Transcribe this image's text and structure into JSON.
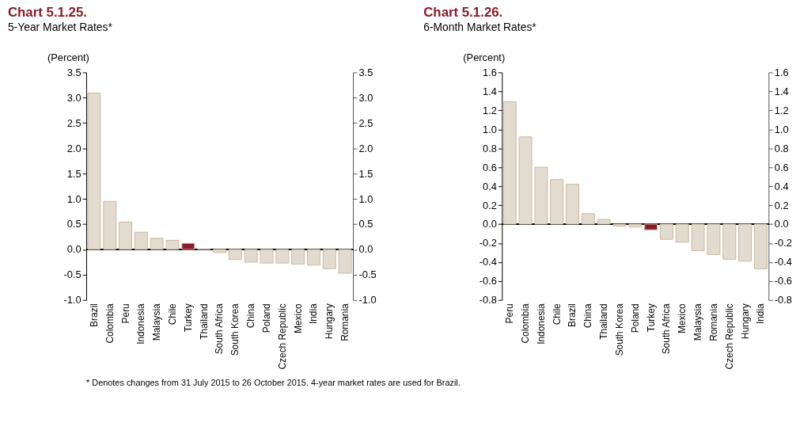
{
  "chart_data": [
    {
      "type": "bar",
      "title": "Chart 5.1.25.",
      "subtitle": "5-Year Market Rates*",
      "ylabel": "(Percent)",
      "categories": [
        "Brazil",
        "Colombia",
        "Peru",
        "Indonesia",
        "Malaysia",
        "Chile",
        "Turkey",
        "Thailand",
        "South Africa",
        "South Korea",
        "China",
        "Poland",
        "Czech Republic",
        "Mexico",
        "India",
        "Hungary",
        "Romania"
      ],
      "values": [
        3.09,
        0.95,
        0.54,
        0.34,
        0.22,
        0.18,
        0.12,
        0.01,
        -0.06,
        -0.2,
        -0.25,
        -0.27,
        -0.27,
        -0.29,
        -0.31,
        -0.38,
        -0.47
      ],
      "colors": [
        "#e4dbd0",
        "#e4dbd0",
        "#e4dbd0",
        "#e4dbd0",
        "#e4dbd0",
        "#e4dbd0",
        "#8b1a2b",
        "#e4dbd0",
        "#e4dbd0",
        "#e4dbd0",
        "#e4dbd0",
        "#e4dbd0",
        "#e4dbd0",
        "#e4dbd0",
        "#e4dbd0",
        "#e4dbd0",
        "#e4dbd0"
      ],
      "ylim": [
        -1.0,
        3.5
      ],
      "yticks": [
        {
          "value": -1,
          "label": "-1.0"
        },
        -0.5,
        {
          "value": 0,
          "label": "0.0"
        },
        0.5,
        {
          "value": 1,
          "label": "1.0"
        },
        1.5,
        {
          "value": 2,
          "label": "2.0"
        },
        2.5,
        {
          "value": 3,
          "label": "3.0"
        },
        3.5
      ],
      "y2lim": [
        -1.0,
        3.5
      ],
      "y2ticks": [
        {
          "value": -1,
          "label": "-1.0"
        },
        -0.5,
        {
          "value": 0,
          "label": "0.0"
        },
        0.5,
        {
          "value": 1,
          "label": "1.0"
        },
        1.5,
        {
          "value": 2,
          "label": "2.0"
        },
        2.5,
        {
          "value": 3,
          "label": "3.0"
        },
        3.5
      ],
      "annotations": [
        "* Denotes changes from 31 July 2015 to 26 October 2015. 4-year market rates are used for Brazil."
      ]
    },
    {
      "type": "bar",
      "title": "Chart 5.1.26.",
      "subtitle": "6-Month Market Rates*",
      "ylabel": "(Percent)",
      "categories": [
        "Peru",
        "Colombia",
        "Indonesia",
        "Chile",
        "Brazil",
        "China",
        "Thailand",
        "South Korea",
        "Poland",
        "Turkey",
        "South Africa",
        "Mexico",
        "Malaysia",
        "Romania",
        "Czech Republic",
        "Hungary",
        "India"
      ],
      "values": [
        1.29,
        0.92,
        0.6,
        0.47,
        0.42,
        0.11,
        0.05,
        -0.02,
        -0.03,
        -0.06,
        -0.16,
        -0.19,
        -0.28,
        -0.32,
        -0.37,
        -0.39,
        -0.47
      ],
      "colors": [
        "#e4dbd0",
        "#e4dbd0",
        "#e4dbd0",
        "#e4dbd0",
        "#e4dbd0",
        "#e4dbd0",
        "#e4dbd0",
        "#e4dbd0",
        "#e4dbd0",
        "#8b1a2b",
        "#e4dbd0",
        "#e4dbd0",
        "#e4dbd0",
        "#e4dbd0",
        "#e4dbd0",
        "#e4dbd0",
        "#e4dbd0"
      ],
      "ylim": [
        -0.8,
        1.6
      ],
      "yticks": [
        -0.8,
        -0.6,
        -0.4,
        -0.2,
        {
          "value": 0,
          "label": "0.0"
        },
        0.2,
        0.4,
        0.6,
        0.8,
        {
          "value": 1,
          "label": "1.0"
        },
        1.2,
        1.4,
        1.6
      ],
      "y2lim": [
        -0.8,
        1.6
      ],
      "y2ticks": [
        -0.8,
        -0.6,
        -0.4,
        -0.2,
        {
          "value": 0,
          "label": "0.0"
        },
        0.2,
        0.4,
        0.6,
        0.8,
        {
          "value": 1,
          "label": "1.0"
        },
        1.2,
        1.4,
        1.6
      ]
    }
  ]
}
